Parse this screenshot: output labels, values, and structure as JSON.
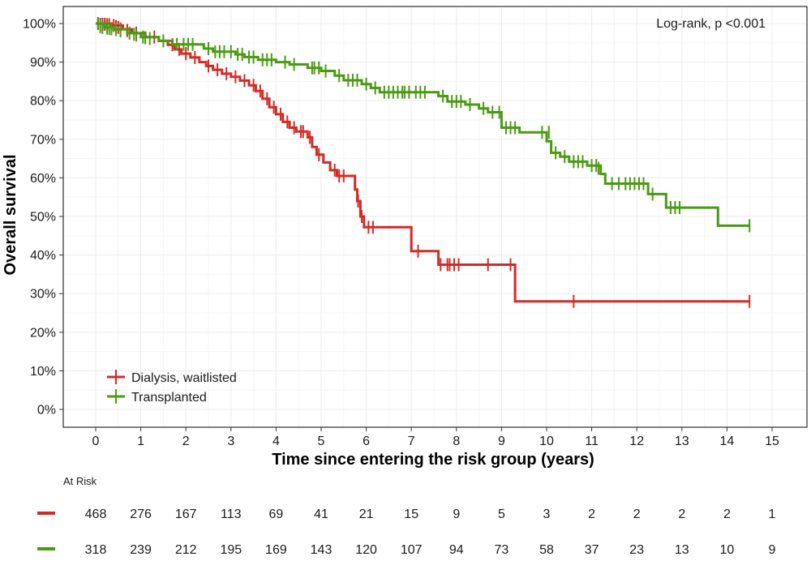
{
  "chart_data": {
    "type": "line",
    "subtype": "kaplan-meier",
    "title": "",
    "xlabel": "Time since entering the risk group (years)",
    "ylabel": "Overall survival",
    "xlim": [
      0,
      15
    ],
    "ylim": [
      0,
      100
    ],
    "x_ticks": [
      0,
      1,
      2,
      3,
      4,
      5,
      6,
      7,
      8,
      9,
      10,
      11,
      12,
      13,
      14,
      15
    ],
    "y_ticks": [
      0,
      10,
      20,
      30,
      40,
      50,
      60,
      70,
      80,
      90,
      100
    ],
    "y_tick_labels": [
      "0%",
      "10%",
      "20%",
      "30%",
      "40%",
      "50%",
      "60%",
      "70%",
      "80%",
      "90%",
      "100%"
    ],
    "grid": true,
    "annotation": "Log-rank, p <0.001",
    "legend_position": "bottom-left",
    "series": [
      {
        "name": "Dialysis, waitlisted",
        "color": "#d22b27",
        "steps": [
          [
            0,
            100
          ],
          [
            0.35,
            99.5
          ],
          [
            0.6,
            98.5
          ],
          [
            0.8,
            97.5
          ],
          [
            1.1,
            96.5
          ],
          [
            1.4,
            95.5
          ],
          [
            1.6,
            94.5
          ],
          [
            1.75,
            93.3
          ],
          [
            1.9,
            92.2
          ],
          [
            2.1,
            91.2
          ],
          [
            2.3,
            90
          ],
          [
            2.45,
            89
          ],
          [
            2.6,
            88
          ],
          [
            2.8,
            87
          ],
          [
            3.0,
            86.2
          ],
          [
            3.2,
            85.2
          ],
          [
            3.4,
            84
          ],
          [
            3.55,
            82.5
          ],
          [
            3.7,
            80.5
          ],
          [
            3.85,
            78.3
          ],
          [
            4.0,
            76.5
          ],
          [
            4.15,
            74.5
          ],
          [
            4.3,
            73
          ],
          [
            4.45,
            72
          ],
          [
            4.7,
            70.5
          ],
          [
            4.8,
            68
          ],
          [
            4.9,
            66
          ],
          [
            5.05,
            64
          ],
          [
            5.2,
            62
          ],
          [
            5.35,
            60.5
          ],
          [
            5.75,
            57
          ],
          [
            5.8,
            54
          ],
          [
            5.87,
            50
          ],
          [
            5.95,
            47.2
          ],
          [
            7.0,
            41
          ],
          [
            7.6,
            37.5
          ],
          [
            9.3,
            28
          ],
          [
            14.5,
            28
          ]
        ],
        "censors": [
          [
            0.05,
            100
          ],
          [
            0.1,
            99.8
          ],
          [
            0.15,
            99.8
          ],
          [
            0.2,
            99.8
          ],
          [
            0.25,
            99.7
          ],
          [
            0.3,
            99.7
          ],
          [
            0.4,
            99.5
          ],
          [
            0.45,
            99.2
          ],
          [
            0.5,
            99
          ],
          [
            0.55,
            98.6
          ],
          [
            0.7,
            98.2
          ],
          [
            0.9,
            97.5
          ],
          [
            1.3,
            96.5
          ],
          [
            1.7,
            94.5
          ],
          [
            1.85,
            93.3
          ],
          [
            2.0,
            92.2
          ],
          [
            2.2,
            91.2
          ],
          [
            2.5,
            89
          ],
          [
            2.7,
            88
          ],
          [
            2.9,
            87
          ],
          [
            3.1,
            86.2
          ],
          [
            3.3,
            85.2
          ],
          [
            3.5,
            84
          ],
          [
            3.65,
            82.5
          ],
          [
            3.8,
            80.5
          ],
          [
            3.95,
            78.3
          ],
          [
            4.1,
            76.5
          ],
          [
            4.25,
            74.5
          ],
          [
            4.4,
            73
          ],
          [
            4.55,
            72
          ],
          [
            4.6,
            72
          ],
          [
            4.75,
            70.5
          ],
          [
            4.95,
            66
          ],
          [
            5.3,
            62
          ],
          [
            5.4,
            60.5
          ],
          [
            5.5,
            60.5
          ],
          [
            5.82,
            54
          ],
          [
            5.9,
            50
          ],
          [
            6.05,
            47.2
          ],
          [
            6.15,
            47.2
          ],
          [
            7.15,
            41
          ],
          [
            7.65,
            37.5
          ],
          [
            7.8,
            37.5
          ],
          [
            7.85,
            37.5
          ],
          [
            7.95,
            37.5
          ],
          [
            8.05,
            37.5
          ],
          [
            8.7,
            37.5
          ],
          [
            9.2,
            37.5
          ],
          [
            10.6,
            28
          ],
          [
            14.5,
            28
          ]
        ]
      },
      {
        "name": "Transplanted",
        "color": "#4a9a12",
        "steps": [
          [
            0,
            100
          ],
          [
            0.2,
            99
          ],
          [
            0.4,
            98.5
          ],
          [
            0.7,
            97.5
          ],
          [
            1.0,
            96.5
          ],
          [
            1.4,
            95.5
          ],
          [
            1.7,
            94.6
          ],
          [
            2.4,
            93.5
          ],
          [
            2.6,
            92.7
          ],
          [
            3.1,
            92
          ],
          [
            3.3,
            91.3
          ],
          [
            3.6,
            90.6
          ],
          [
            4.0,
            90
          ],
          [
            4.3,
            89.4
          ],
          [
            4.7,
            88.5
          ],
          [
            5.0,
            87.7
          ],
          [
            5.3,
            86.5
          ],
          [
            5.5,
            85.3
          ],
          [
            5.9,
            84.3
          ],
          [
            6.1,
            83.3
          ],
          [
            6.3,
            82.2
          ],
          [
            7.6,
            81.2
          ],
          [
            7.8,
            79.8
          ],
          [
            8.2,
            79
          ],
          [
            8.5,
            78
          ],
          [
            8.7,
            77
          ],
          [
            9.0,
            73
          ],
          [
            9.4,
            71.8
          ],
          [
            10.0,
            69.5
          ],
          [
            10.1,
            66.5
          ],
          [
            10.3,
            65.5
          ],
          [
            10.5,
            64.2
          ],
          [
            10.9,
            63.2
          ],
          [
            11.2,
            61
          ],
          [
            11.3,
            58.5
          ],
          [
            12.25,
            55.8
          ],
          [
            12.65,
            52.3
          ],
          [
            13.8,
            47.6
          ],
          [
            14.5,
            47.6
          ]
        ],
        "censors": [
          [
            0.05,
            100
          ],
          [
            0.1,
            99.2
          ],
          [
            0.15,
            99
          ],
          [
            0.25,
            98.8
          ],
          [
            0.3,
            98.7
          ],
          [
            0.35,
            98.6
          ],
          [
            0.45,
            98.4
          ],
          [
            0.55,
            98.1
          ],
          [
            0.75,
            97.5
          ],
          [
            0.85,
            97.2
          ],
          [
            0.9,
            97
          ],
          [
            1.05,
            96.5
          ],
          [
            1.1,
            96.3
          ],
          [
            1.2,
            96.1
          ],
          [
            1.5,
            95.5
          ],
          [
            1.8,
            94.6
          ],
          [
            1.95,
            94.6
          ],
          [
            2.05,
            94.6
          ],
          [
            2.15,
            94.6
          ],
          [
            2.5,
            93.5
          ],
          [
            2.65,
            92.7
          ],
          [
            2.75,
            92.7
          ],
          [
            2.85,
            92.7
          ],
          [
            3.0,
            92.7
          ],
          [
            3.15,
            92
          ],
          [
            3.25,
            92
          ],
          [
            3.4,
            91.3
          ],
          [
            3.5,
            91.3
          ],
          [
            3.7,
            90.6
          ],
          [
            3.8,
            90.6
          ],
          [
            3.9,
            90.6
          ],
          [
            4.2,
            90
          ],
          [
            4.4,
            89.4
          ],
          [
            4.8,
            88.5
          ],
          [
            4.85,
            88.5
          ],
          [
            4.95,
            88.5
          ],
          [
            5.1,
            87.7
          ],
          [
            5.4,
            86.5
          ],
          [
            5.6,
            85.3
          ],
          [
            5.7,
            85.3
          ],
          [
            5.8,
            85.3
          ],
          [
            6.0,
            84.3
          ],
          [
            6.2,
            83.3
          ],
          [
            6.4,
            82.2
          ],
          [
            6.5,
            82.2
          ],
          [
            6.6,
            82.2
          ],
          [
            6.7,
            82.2
          ],
          [
            6.8,
            82.2
          ],
          [
            6.85,
            82.2
          ],
          [
            6.95,
            82.2
          ],
          [
            7.1,
            82.2
          ],
          [
            7.2,
            82.2
          ],
          [
            7.3,
            82.2
          ],
          [
            7.7,
            81.2
          ],
          [
            7.9,
            79.8
          ],
          [
            8.0,
            79.8
          ],
          [
            8.1,
            79.8
          ],
          [
            8.3,
            79
          ],
          [
            8.6,
            78
          ],
          [
            8.8,
            77
          ],
          [
            8.95,
            77
          ],
          [
            9.1,
            73
          ],
          [
            9.2,
            73
          ],
          [
            9.3,
            73
          ],
          [
            9.9,
            71.8
          ],
          [
            10.05,
            71.8
          ],
          [
            10.2,
            66.5
          ],
          [
            10.4,
            65.5
          ],
          [
            10.6,
            64.2
          ],
          [
            10.7,
            64.2
          ],
          [
            10.8,
            64.2
          ],
          [
            11.0,
            63.2
          ],
          [
            11.1,
            63.2
          ],
          [
            11.15,
            62.5
          ],
          [
            11.45,
            58.5
          ],
          [
            11.6,
            58.5
          ],
          [
            11.75,
            58.5
          ],
          [
            11.85,
            58.5
          ],
          [
            11.95,
            58.5
          ],
          [
            12.05,
            58.5
          ],
          [
            12.15,
            58.5
          ],
          [
            12.35,
            55.8
          ],
          [
            12.75,
            52.3
          ],
          [
            12.85,
            52.3
          ],
          [
            12.95,
            52.3
          ],
          [
            14.5,
            47.6
          ]
        ]
      }
    ],
    "risk_table": {
      "title": "At Risk",
      "times": [
        0,
        1,
        2,
        3,
        4,
        5,
        6,
        7,
        8,
        9,
        10,
        11,
        12,
        13,
        14,
        15
      ],
      "rows": [
        {
          "name": "Dialysis, waitlisted",
          "color": "#d22b27",
          "counts": [
            468,
            276,
            167,
            113,
            69,
            41,
            21,
            15,
            9,
            5,
            3,
            2,
            2,
            2,
            2,
            1
          ]
        },
        {
          "name": "Transplanted",
          "color": "#4a9a12",
          "counts": [
            318,
            239,
            212,
            195,
            169,
            143,
            120,
            107,
            94,
            73,
            58,
            37,
            23,
            13,
            10,
            9
          ]
        }
      ]
    }
  }
}
